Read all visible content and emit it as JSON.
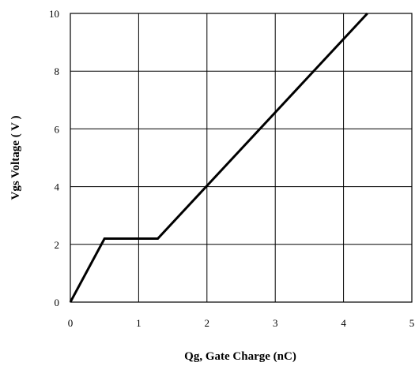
{
  "chart_data": {
    "type": "line",
    "title": "",
    "xlabel": "Qg, Gate Charge (nC)",
    "ylabel": "Vgs Voltage ( V )",
    "xlim": [
      0,
      5
    ],
    "ylim": [
      0,
      10
    ],
    "x_ticks": [
      0,
      1,
      2,
      3,
      4,
      5
    ],
    "y_ticks": [
      0,
      2,
      4,
      6,
      8,
      10
    ],
    "x_tick_labels": [
      "0",
      "1",
      "2",
      "3",
      "4",
      "5"
    ],
    "y_tick_labels": [
      "0",
      "2",
      "4",
      "6",
      "8",
      "10"
    ],
    "grid": true,
    "legend": "none",
    "line_color": "#000000",
    "series": [
      {
        "x": [
          0,
          0.5,
          1.28,
          4.35
        ],
        "y": [
          0,
          2.2,
          2.2,
          10
        ]
      }
    ]
  }
}
